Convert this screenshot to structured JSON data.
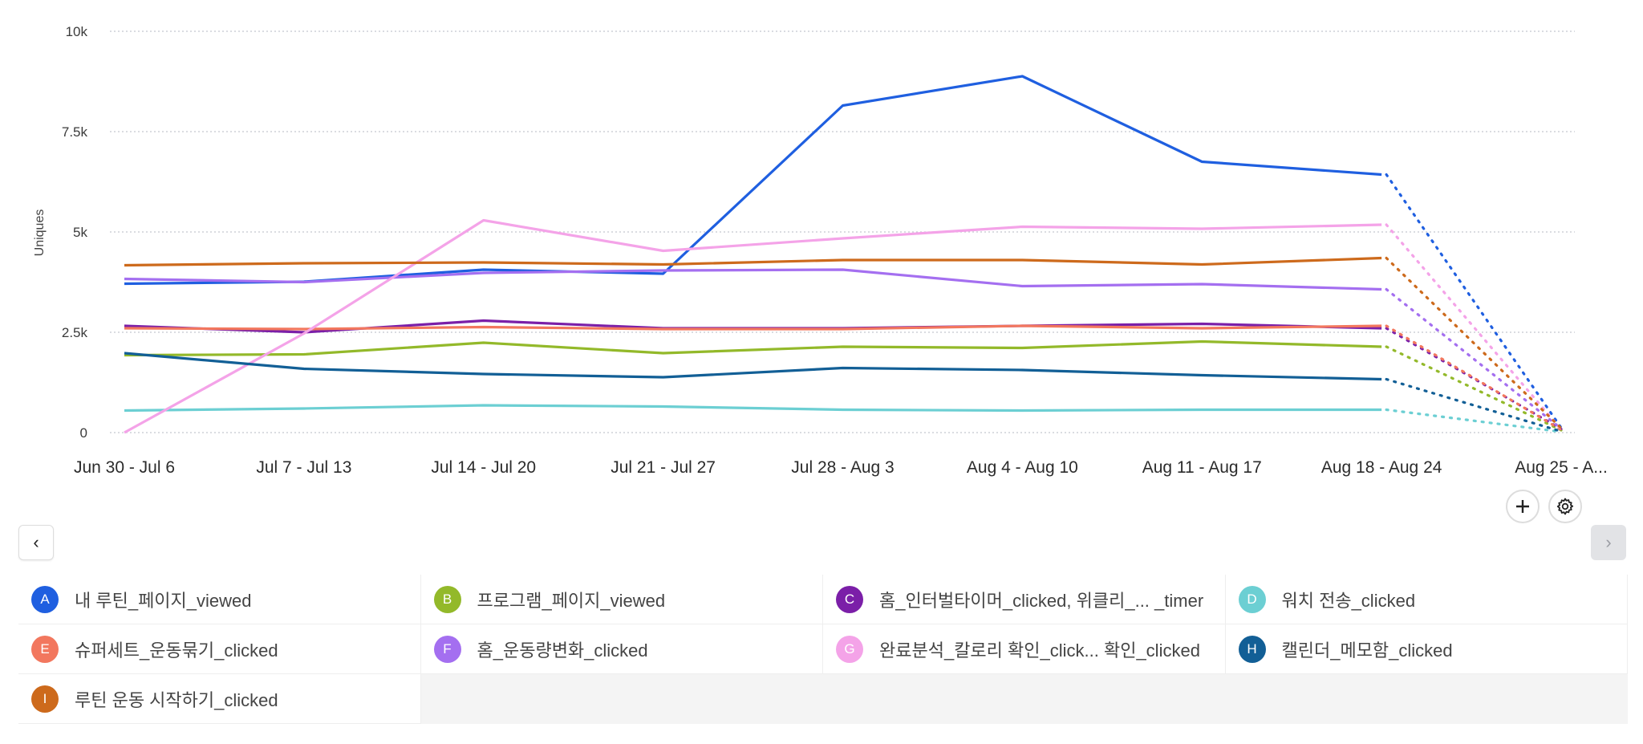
{
  "chart_data": {
    "type": "line",
    "title": "",
    "xlabel": "",
    "ylabel": "Uniques",
    "ylim": [
      0,
      10000
    ],
    "yticks": [
      0,
      2500,
      5000,
      7500,
      10000
    ],
    "ytick_labels": [
      "0",
      "2.5k",
      "5k",
      "7.5k",
      "10k"
    ],
    "grid": true,
    "categories": [
      "Jun 30 - Jul 6",
      "Jul 7 - Jul 13",
      "Jul 14 - Jul 20",
      "Jul 21 - Jul 27",
      "Jul 28 - Aug 3",
      "Aug 4 - Aug 10",
      "Aug 11 - Aug 17",
      "Aug 18 - Aug 24",
      "Aug 25 - A..."
    ],
    "incomplete_last_period": true,
    "series": [
      {
        "letter": "A",
        "name": "내 루틴_페이지_viewed",
        "color": "#1f5fe0",
        "values": [
          3710,
          3760,
          4060,
          3960,
          8150,
          8880,
          6750,
          6430,
          120
        ]
      },
      {
        "letter": "B",
        "name": "프로그램_페이지_viewed",
        "color": "#93b92a",
        "values": [
          1930,
          1950,
          2240,
          1980,
          2140,
          2110,
          2270,
          2140,
          60
        ]
      },
      {
        "letter": "C",
        "name": "홈_인터벌타이머_clicked, 위클리_... _timer",
        "color": "#7b1fa8",
        "values": [
          2660,
          2500,
          2790,
          2600,
          2600,
          2660,
          2710,
          2600,
          90
        ]
      },
      {
        "letter": "D",
        "name": "워치 전송_clicked",
        "color": "#6ccfd3",
        "values": [
          550,
          600,
          680,
          650,
          570,
          550,
          570,
          570,
          20
        ]
      },
      {
        "letter": "E",
        "name": "슈퍼세트_운동묶기_clicked",
        "color": "#f2775e",
        "values": [
          2600,
          2580,
          2630,
          2580,
          2580,
          2660,
          2600,
          2660,
          70
        ]
      },
      {
        "letter": "F",
        "name": "홈_운동량변화_clicked",
        "color": "#a46ff0",
        "values": [
          3830,
          3750,
          3980,
          4040,
          4060,
          3650,
          3700,
          3570,
          100
        ]
      },
      {
        "letter": "G",
        "name": "완료분석_칼로리 확인_click...  확인_clicked",
        "color": "#f4a3e8",
        "values": [
          0,
          2470,
          5290,
          4530,
          4840,
          5130,
          5080,
          5180,
          80
        ]
      },
      {
        "letter": "H",
        "name": "캘린더_메모함_clicked",
        "color": "#125f96",
        "values": [
          1980,
          1590,
          1460,
          1380,
          1610,
          1560,
          1430,
          1330,
          30
        ]
      },
      {
        "letter": "I",
        "name": "루틴 운동 시작하기_clicked",
        "color": "#cd6a1c",
        "values": [
          4170,
          4220,
          4240,
          4190,
          4300,
          4300,
          4190,
          4350,
          110
        ]
      }
    ]
  },
  "controls": {
    "add_icon": "plus-icon",
    "settings_icon": "gear-icon",
    "prev_glyph": "‹",
    "next_glyph": "›"
  }
}
